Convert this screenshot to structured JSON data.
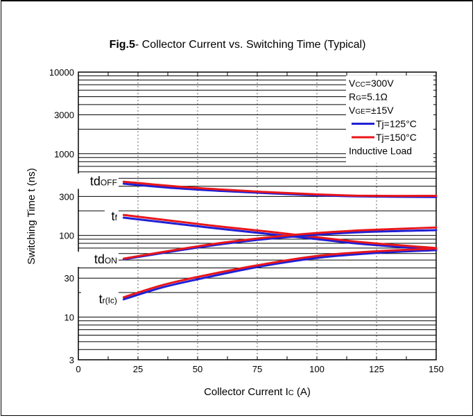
{
  "chart_data": {
    "type": "line",
    "title_prefix": "Fig.5",
    "title_suffix": "- Collector Current vs. Switching Time (Typical)",
    "xlabel": "Collector Current I",
    "xlabel_sub": "C",
    "xlabel_unit": "(A)",
    "ylabel": "Switching Time t  (ns)",
    "xlim": [
      0,
      150
    ],
    "ylim": [
      3,
      10000
    ],
    "y_scale": "log",
    "x_ticks": [
      0,
      25,
      50,
      75,
      100,
      125,
      150
    ],
    "y_ticks": [
      3,
      10,
      30,
      100,
      300,
      1000,
      3000,
      10000
    ],
    "conditions": [
      {
        "main": "V",
        "sub": "CC",
        "rest": "=300V"
      },
      {
        "main": "R",
        "sub": "G",
        "rest": "=5.1Ω"
      },
      {
        "main": "V",
        "sub": "GE",
        "rest": "=±15V"
      }
    ],
    "legend": [
      {
        "label": "Tj=125°C",
        "color": "#1f1fd6"
      },
      {
        "label": "Tj=150°C",
        "color": "#e8161a"
      }
    ],
    "legend_note": "Inductive Load",
    "annotations": [
      {
        "main": "td",
        "sub": "OFF",
        "x": 18,
        "y": 470
      },
      {
        "main": "t",
        "sub": "f",
        "x": 18,
        "y": 175
      },
      {
        "main": "td",
        "sub": "ON",
        "x": 18,
        "y": 52
      },
      {
        "main": "t",
        "sub": "r(Ic)",
        "x": 18,
        "y": 17
      }
    ],
    "series": [
      {
        "curve": "tdOFF",
        "tj": "125°C",
        "x": [
          19,
          40,
          60,
          80,
          100,
          120,
          150
        ],
        "values": [
          430,
          380,
          350,
          328,
          310,
          300,
          295
        ]
      },
      {
        "curve": "tdOFF",
        "tj": "150°C",
        "x": [
          19,
          40,
          60,
          80,
          100,
          120,
          150
        ],
        "values": [
          455,
          400,
          365,
          338,
          318,
          306,
          305
        ]
      },
      {
        "curve": "tf",
        "tj": "125°C",
        "x": [
          19,
          40,
          60,
          80,
          100,
          120,
          150
        ],
        "values": [
          165,
          140,
          120,
          104,
          90,
          78,
          67
        ]
      },
      {
        "curve": "tf",
        "tj": "150°C",
        "x": [
          19,
          40,
          60,
          80,
          100,
          120,
          150
        ],
        "values": [
          178,
          150,
          128,
          111,
          95,
          82,
          70
        ]
      },
      {
        "curve": "tdON",
        "tj": "125°C",
        "x": [
          19,
          40,
          60,
          80,
          100,
          120,
          150
        ],
        "values": [
          51,
          64,
          78,
          91,
          102,
          110,
          116
        ]
      },
      {
        "curve": "tdON",
        "tj": "150°C",
        "x": [
          19,
          40,
          60,
          80,
          100,
          120,
          150
        ],
        "values": [
          52,
          66,
          81,
          95,
          107,
          116,
          125
        ]
      },
      {
        "curve": "tr(Ic)",
        "tj": "125°C",
        "x": [
          19,
          35,
          50,
          75,
          100,
          125,
          150
        ],
        "values": [
          16.5,
          23,
          29,
          41,
          53,
          61,
          66
        ]
      },
      {
        "curve": "tr(Ic)",
        "tj": "150°C",
        "x": [
          19,
          35,
          50,
          75,
          100,
          125,
          150
        ],
        "values": [
          17.5,
          24.5,
          31,
          43,
          56,
          64,
          69
        ]
      }
    ]
  }
}
